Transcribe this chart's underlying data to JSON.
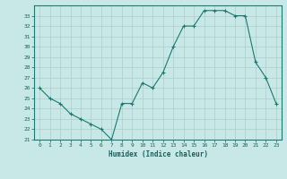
{
  "x": [
    0,
    1,
    2,
    3,
    4,
    5,
    6,
    7,
    8,
    9,
    10,
    11,
    12,
    13,
    14,
    15,
    16,
    17,
    18,
    19,
    20,
    21,
    22,
    23
  ],
  "y": [
    26,
    25,
    24.5,
    23.5,
    23,
    22.5,
    22,
    21,
    24.5,
    24.5,
    26.5,
    26,
    27.5,
    30,
    32,
    32,
    33.5,
    33.5,
    33.5,
    33,
    33,
    28.5,
    27,
    24.5
  ],
  "title": "",
  "xlabel": "Humidex (Indice chaleur)",
  "ylabel": "",
  "ylim": [
    21,
    34
  ],
  "xlim": [
    -0.5,
    23.5
  ],
  "yticks": [
    21,
    22,
    23,
    24,
    25,
    26,
    27,
    28,
    29,
    30,
    31,
    32,
    33
  ],
  "xticks": [
    0,
    1,
    2,
    3,
    4,
    5,
    6,
    7,
    8,
    9,
    10,
    11,
    12,
    13,
    14,
    15,
    16,
    17,
    18,
    19,
    20,
    21,
    22,
    23
  ],
  "line_color": "#1a7a6e",
  "marker_color": "#1a7a6e",
  "bg_color": "#c8e8e8",
  "grid_color": "#b0cccc",
  "font_color": "#1a5f5a"
}
